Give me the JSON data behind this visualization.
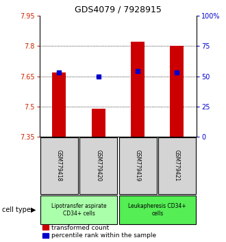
{
  "title": "GDS4079 / 7928915",
  "samples": [
    "GSM779418",
    "GSM779420",
    "GSM779419",
    "GSM779421"
  ],
  "transformed_counts": [
    7.67,
    7.49,
    7.82,
    7.8
  ],
  "percentile_vals": [
    53,
    50,
    54,
    53
  ],
  "ylim": [
    7.35,
    7.95
  ],
  "yticks_left": [
    7.35,
    7.5,
    7.65,
    7.8,
    7.95
  ],
  "yticks_right": [
    0,
    25,
    50,
    75,
    100
  ],
  "ytick_right_labels": [
    "0",
    "25",
    "50",
    "75",
    "100%"
  ],
  "bar_bottom": 7.35,
  "cell_types": [
    {
      "label": "Lipotransfer aspirate\nCD34+ cells",
      "color": "#aaffaa",
      "samples": [
        0,
        1
      ]
    },
    {
      "label": "Leukapheresis CD34+\ncells",
      "color": "#55ee55",
      "samples": [
        2,
        3
      ]
    }
  ],
  "bar_color": "#cc0000",
  "dot_color": "#0000cc",
  "left_tick_color": "#cc2200",
  "right_tick_color": "#0000cc",
  "bar_width": 0.35,
  "legend_red_label": "transformed count",
  "legend_blue_label": "percentile rank within the sample",
  "gsm_box_color": "#d4d4d4"
}
